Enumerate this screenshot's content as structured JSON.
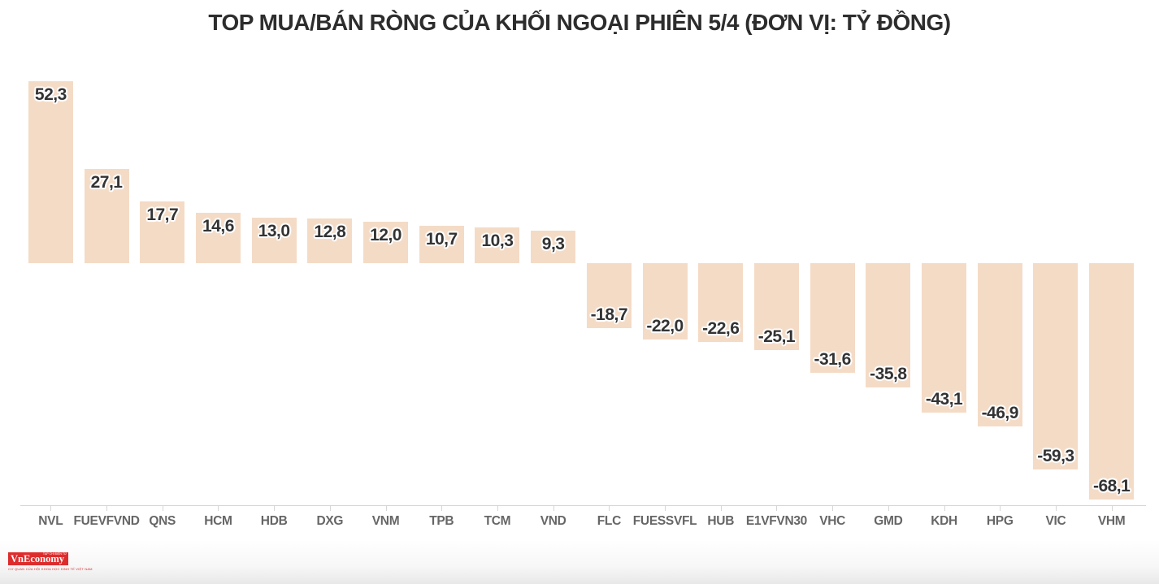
{
  "title": "TOP MUA/BÁN RÒNG CỦA KHỐI NGOẠI PHIÊN 5/4 (ĐƠN VỊ: TỶ ĐỒNG)",
  "chart_data": {
    "type": "bar",
    "title": "TOP MUA/BÁN RÒNG CỦA KHỐI NGOẠI PHIÊN 5/4 (ĐƠN VỊ: TỶ ĐỒNG)",
    "unit": "TỶ ĐỒNG",
    "categories": [
      "NVL",
      "FUEVFVND",
      "QNS",
      "HCM",
      "HDB",
      "DXG",
      "VNM",
      "TPB",
      "TCM",
      "VND",
      "FLC",
      "FUESSVFL",
      "HUB",
      "E1VFVN30",
      "VHC",
      "GMD",
      "KDH",
      "HPG",
      "VIC",
      "VHM"
    ],
    "values": [
      52.3,
      27.1,
      17.7,
      14.6,
      13.0,
      12.8,
      12.0,
      10.7,
      10.3,
      9.3,
      -18.7,
      -22.0,
      -22.6,
      -25.1,
      -31.6,
      -35.8,
      -43.1,
      -46.9,
      -59.3,
      -68.1
    ],
    "value_labels": [
      "52,3",
      "27,1",
      "17,7",
      "14,6",
      "13,0",
      "12,8",
      "12,0",
      "10,7",
      "10,3",
      "9,3",
      "-18,7",
      "-22,0",
      "-22,6",
      "-25,1",
      "-31,6",
      "-35,8",
      "-43,1",
      "-46,9",
      "-59,3",
      "-68,1"
    ],
    "xlabel": "",
    "ylabel": "",
    "ylim": [
      -75,
      55
    ],
    "grid": false,
    "legend": "none",
    "bar_color": "#f4dbc6",
    "value_label_color": "#333333",
    "axis_label_color": "#666666",
    "axis_line_color": "#d6d6d6",
    "title_color": "#2d2d2d",
    "background_color": "#ffffff"
  },
  "logo": {
    "name": "VnEconomy",
    "tagline_top": "TẠP CHÍ ĐIỆN TỬ",
    "tagline_bottom": "CƠ QUAN CỦA HỘI KHOA HỌC KINH TẾ VIỆT NAM",
    "color": "#e22d2d"
  }
}
